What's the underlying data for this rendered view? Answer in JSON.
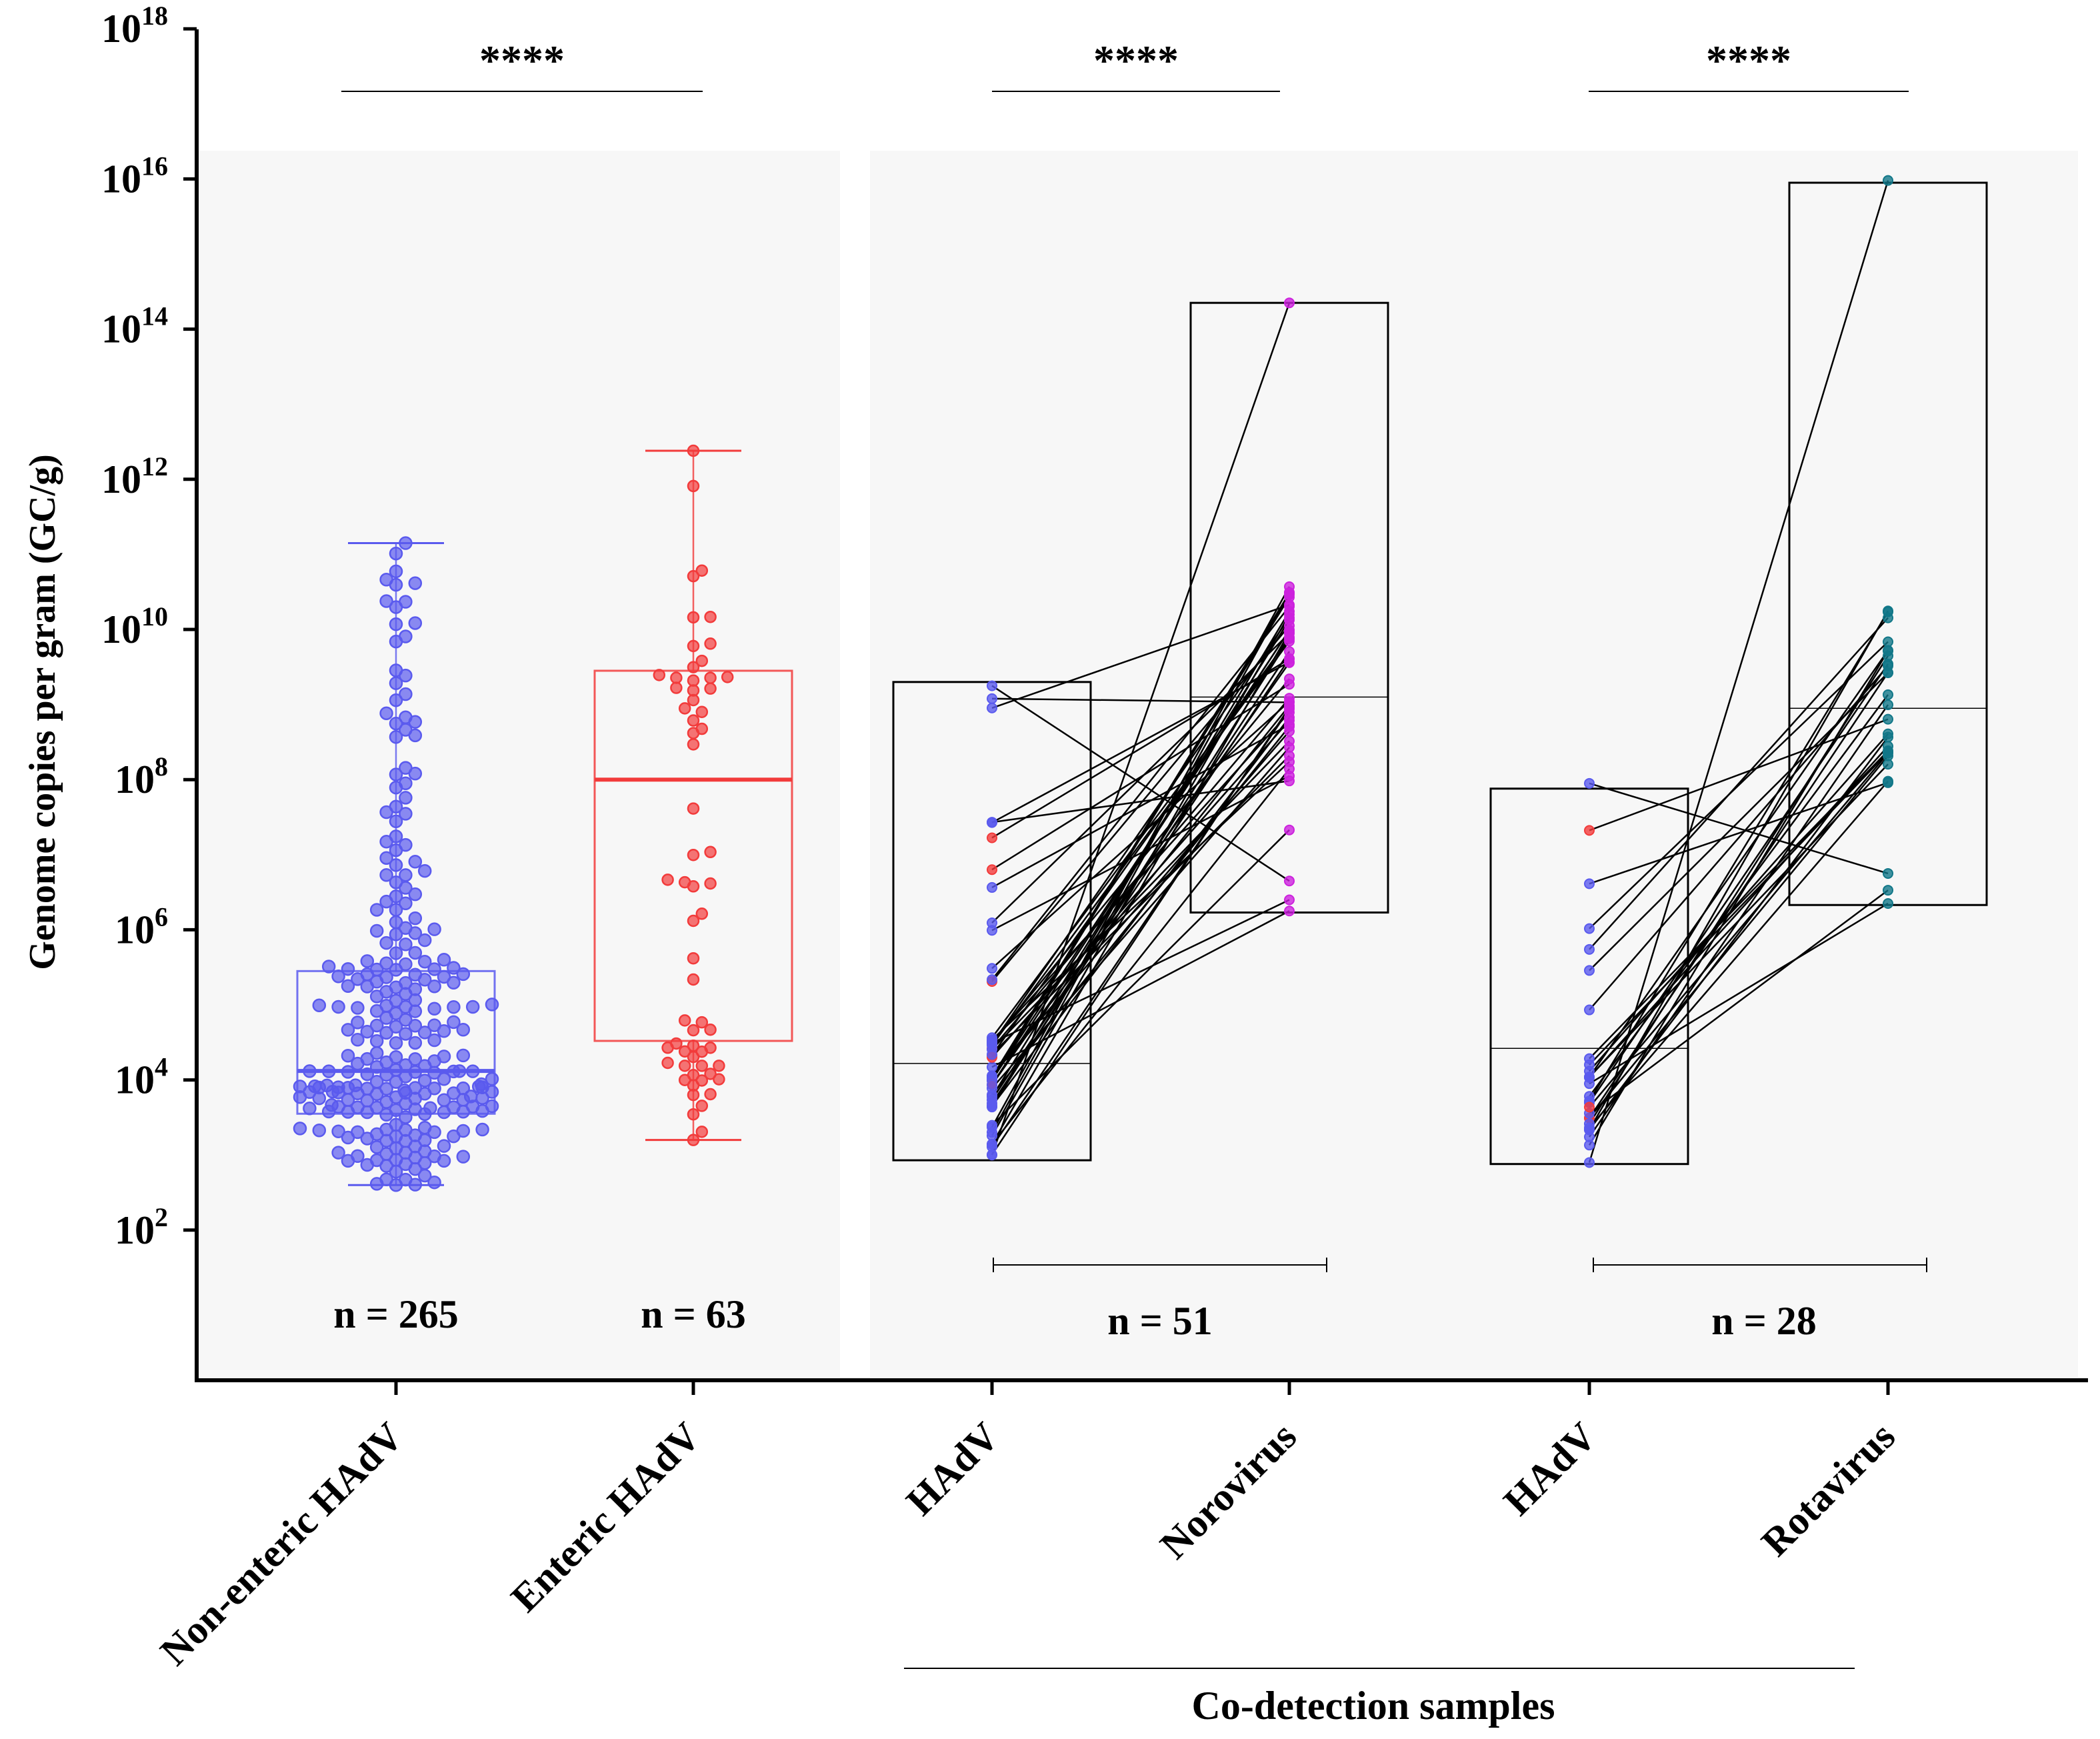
{
  "chart_data": {
    "type": "box-scatter",
    "ylabel": "Genome copies per gram (GC/g)",
    "yscale": "log10",
    "ylim_log10": [
      0,
      18
    ],
    "yticks": [
      {
        "exp": 2,
        "base": "10",
        "sup": "2"
      },
      {
        "exp": 4,
        "base": "10",
        "sup": "4"
      },
      {
        "exp": 6,
        "base": "10",
        "sup": "6"
      },
      {
        "exp": 8,
        "base": "10",
        "sup": "8"
      },
      {
        "exp": 10,
        "base": "10",
        "sup": "10"
      },
      {
        "exp": 12,
        "base": "10",
        "sup": "12"
      },
      {
        "exp": 14,
        "base": "10",
        "sup": "14"
      },
      {
        "exp": 16,
        "base": "10",
        "sup": "16"
      },
      {
        "exp": 18,
        "base": "10",
        "sup": "18"
      }
    ],
    "categories": [
      "Non-enteric HAdV",
      "Enteric HAdV",
      "HAdV",
      "Norovirus",
      "HAdV",
      "Rotavirus"
    ],
    "colors": {
      "non_enteric": "#5a5aee",
      "enteric": "#f23b3b",
      "hadv_co": "#5a5aee",
      "hadv_co_enteric": "#f23b3b",
      "norovirus": "#cc22dd",
      "rotavirus": "#117788",
      "box_black": "#000000",
      "panel_bg": "#f7f7f7"
    },
    "groups": [
      {
        "name": "Non-enteric HAdV",
        "n": 265,
        "box_log10": {
          "q1": 3.55,
          "median": 4.12,
          "q3": 5.45,
          "min": 2.6,
          "max": 11.15
        },
        "seed": 11
      },
      {
        "name": "Enteric HAdV",
        "n": 63,
        "box_log10": {
          "q1": 4.52,
          "median": 8.0,
          "q3": 9.45,
          "min": 3.2,
          "max": 12.38
        },
        "seed": 23
      }
    ],
    "paired": [
      {
        "left": "HAdV",
        "right": "Norovirus",
        "n": 51,
        "left_box_log10": {
          "q1": 2.93,
          "median": 4.22,
          "q3": 9.3
        },
        "right_box_log10": {
          "q1": 6.23,
          "median": 9.1,
          "q3": 14.35
        },
        "left_range_log10": [
          3.0,
          9.25
        ],
        "right_range_log10": [
          6.25,
          14.35
        ],
        "seed": 37
      },
      {
        "left": "HAdV",
        "right": "Rotavirus",
        "n": 28,
        "left_box_log10": {
          "q1": 2.88,
          "median": 4.42,
          "q3": 7.88
        },
        "right_box_log10": {
          "q1": 6.33,
          "median": 8.95,
          "q3": 15.95
        },
        "left_range_log10": [
          2.9,
          7.95
        ],
        "right_range_log10": [
          6.35,
          15.98
        ],
        "seed": 53
      }
    ],
    "significance": [
      "****",
      "****",
      "****"
    ],
    "n_labels": [
      "n = 265",
      "n = 63",
      "n = 51",
      "n = 28"
    ],
    "group_label": "Co-detection samples"
  }
}
